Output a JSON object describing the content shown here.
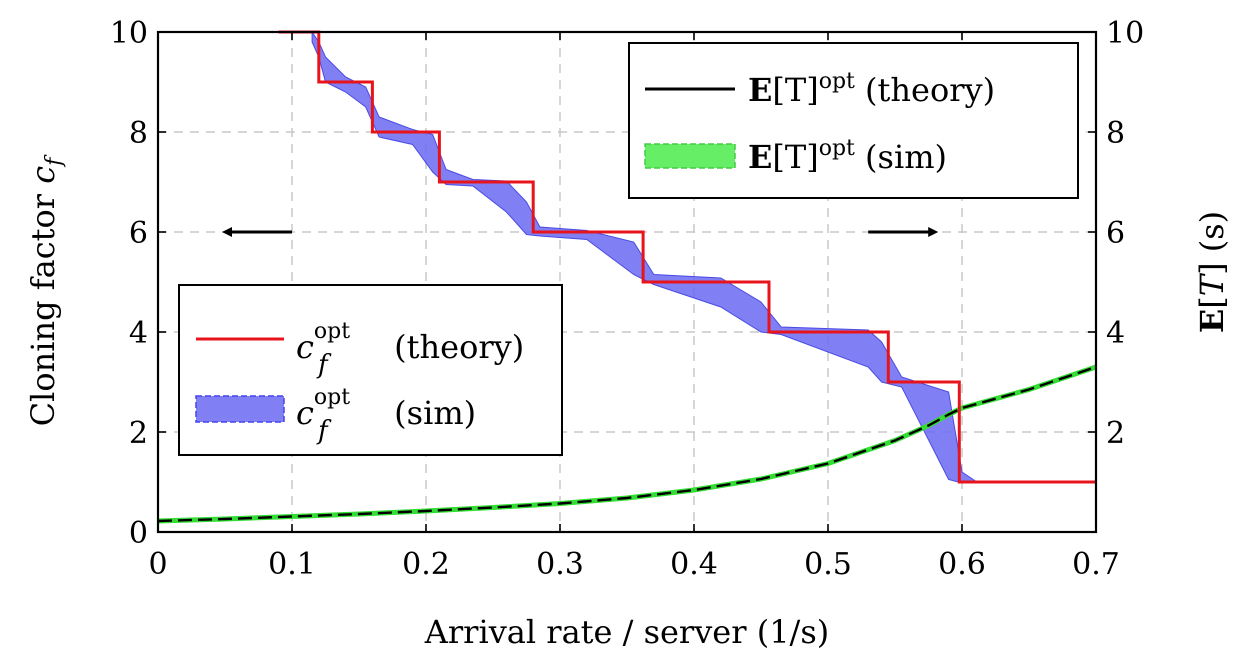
{
  "chart_data": {
    "type": "line",
    "title": "",
    "xlabel": "Arrival rate / server (1/s)",
    "ylabel_left": "Cloning factor c_f",
    "ylabel_right": "E[T] (s)",
    "xlim": [
      0,
      0.7
    ],
    "ylim_left": [
      0,
      10
    ],
    "ylim_right": [
      0,
      10
    ],
    "grid": true,
    "x_ticks": [
      "0",
      "0.1",
      "0.2",
      "0.3",
      "0.4",
      "0.5",
      "0.6",
      "0.7"
    ],
    "y_ticks_left": [
      "0",
      "2",
      "4",
      "6",
      "8",
      "10"
    ],
    "y_ticks_right": [
      "2",
      "4",
      "6",
      "8",
      "10"
    ],
    "legend_right": {
      "placement": "top-right",
      "entries": [
        {
          "label": "E[T]^opt (theory)",
          "bold": "E",
          "mid": "[T]",
          "sup": "opt",
          "suffix": " (theory)"
        },
        {
          "label": "E[T]^opt (sim)",
          "bold": "E",
          "mid": "[T]",
          "sup": "opt",
          "suffix": " (sim)"
        }
      ]
    },
    "legend_left": {
      "placement": "middle-left",
      "entries": [
        {
          "label": "c_f^opt (theory)",
          "base": "c",
          "sub": "f",
          "sup": "opt",
          "suffix": " (theory)"
        },
        {
          "label": "c_f^opt (sim)",
          "base": "c",
          "sub": "f",
          "sup": "opt",
          "suffix": " (sim)"
        }
      ]
    },
    "annotations": [
      {
        "type": "arrow",
        "direction": "left",
        "meaning": "left axis",
        "x": [
          0.1,
          0.05
        ],
        "y": 6
      },
      {
        "type": "arrow",
        "direction": "right",
        "meaning": "right axis",
        "x": [
          0.53,
          0.58
        ],
        "y": 6
      }
    ],
    "series": [
      {
        "name": "c_f^opt (theory)",
        "axis": "left",
        "style": "step",
        "color": "#e8141c",
        "x": [
          0.09,
          0.12,
          0.12,
          0.16,
          0.16,
          0.21,
          0.21,
          0.28,
          0.28,
          0.362,
          0.362,
          0.456,
          0.456,
          0.545,
          0.545,
          0.598,
          0.598,
          0.7
        ],
        "y": [
          10,
          10,
          9,
          9,
          8,
          8,
          7,
          7,
          6,
          6,
          5,
          5,
          4,
          4,
          3,
          3,
          1,
          1
        ]
      },
      {
        "name": "c_f^opt (sim)",
        "axis": "left",
        "style": "band",
        "color": "#6a6af2",
        "x": [
          0.115,
          0.12,
          0.125,
          0.14,
          0.155,
          0.165,
          0.19,
          0.205,
          0.215,
          0.235,
          0.26,
          0.275,
          0.285,
          0.32,
          0.355,
          0.37,
          0.42,
          0.45,
          0.465,
          0.53,
          0.54,
          0.555,
          0.59,
          0.6,
          0.61
        ],
        "upper": [
          10,
          9.8,
          9.5,
          9.1,
          8.9,
          8.3,
          8.05,
          7.95,
          7.25,
          7.05,
          7.02,
          6.6,
          6.1,
          6.03,
          5.8,
          5.15,
          5.08,
          4.6,
          4.1,
          4.04,
          3.8,
          3.1,
          2.8,
          1.2,
          1.02
        ],
        "lower": [
          9.8,
          9.5,
          9.0,
          8.8,
          8.5,
          7.9,
          7.75,
          7.2,
          6.95,
          6.92,
          6.4,
          5.95,
          5.92,
          5.85,
          5.15,
          4.95,
          4.5,
          4.0,
          3.95,
          3.3,
          3.0,
          2.9,
          1.05,
          0.98,
          0.98
        ]
      },
      {
        "name": "E[T]^opt (theory)",
        "axis": "right",
        "style": "line",
        "color": "#000000",
        "x": [
          0,
          0.05,
          0.1,
          0.15,
          0.2,
          0.25,
          0.3,
          0.35,
          0.4,
          0.45,
          0.5,
          0.55,
          0.575,
          0.59,
          0.6,
          0.65,
          0.7
        ],
        "y": [
          0.22,
          0.26,
          0.31,
          0.36,
          0.42,
          0.49,
          0.57,
          0.68,
          0.84,
          1.06,
          1.37,
          1.83,
          2.13,
          2.35,
          2.48,
          2.85,
          3.3
        ]
      },
      {
        "name": "E[T]^opt (sim)",
        "axis": "right",
        "style": "band",
        "color": "#33dd33",
        "x": [
          0,
          0.05,
          0.1,
          0.15,
          0.2,
          0.25,
          0.3,
          0.35,
          0.4,
          0.45,
          0.5,
          0.55,
          0.575,
          0.59,
          0.6,
          0.65,
          0.7
        ],
        "y": [
          0.22,
          0.26,
          0.31,
          0.36,
          0.42,
          0.49,
          0.57,
          0.68,
          0.84,
          1.06,
          1.37,
          1.83,
          2.13,
          2.35,
          2.48,
          2.85,
          3.3
        ]
      }
    ]
  }
}
